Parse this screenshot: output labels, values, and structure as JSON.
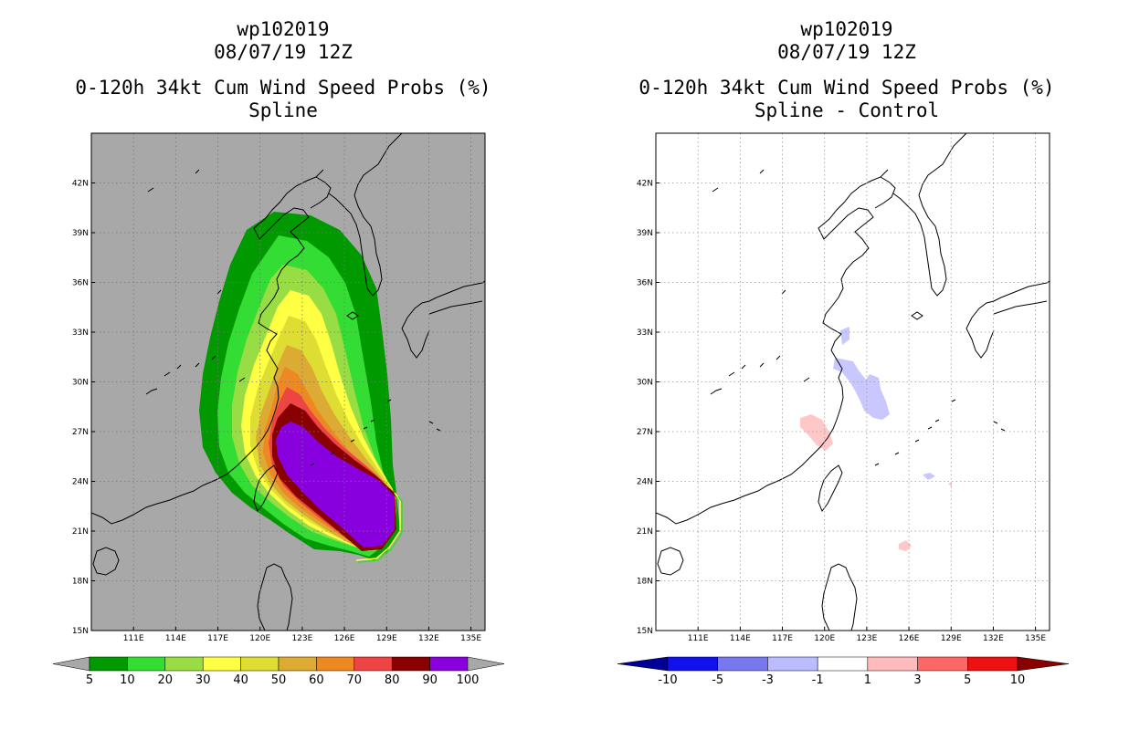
{
  "chart_data": [
    {
      "type": "contour_map",
      "storm_id": "wp102019",
      "datetime": "08/07/19 12Z",
      "title": "0-120h 34kt Cum Wind Speed Probs (%)",
      "subtitle": "Spline",
      "lon_ticks": [
        "111E",
        "114E",
        "117E",
        "120E",
        "123E",
        "126E",
        "129E",
        "132E",
        "135E"
      ],
      "lat_ticks": [
        "42N",
        "39N",
        "36N",
        "33N",
        "30N",
        "27N",
        "24N",
        "21N",
        "18N",
        "15N"
      ],
      "lon_range": [
        108,
        136
      ],
      "lat_range": [
        15,
        45
      ],
      "colorbar_levels": [
        "5",
        "10",
        "20",
        "30",
        "40",
        "50",
        "60",
        "70",
        "80",
        "90",
        "100"
      ],
      "colorbar_colors": [
        "#009900",
        "#33dd33",
        "#99dd44",
        "#ffff44",
        "#dddd33",
        "#ddaa33",
        "#ee8822",
        "#ee4444",
        "#880000",
        "#8800dd"
      ],
      "background_color": "#a8a8a8"
    },
    {
      "type": "contour_map",
      "storm_id": "wp102019",
      "datetime": "08/07/19 12Z",
      "title": "0-120h 34kt Cum Wind Speed Probs (%)",
      "subtitle": "Spline - Control",
      "lon_ticks": [
        "111E",
        "114E",
        "117E",
        "120E",
        "123E",
        "126E",
        "129E",
        "132E",
        "135E"
      ],
      "lat_ticks": [
        "42N",
        "39N",
        "36N",
        "33N",
        "30N",
        "27N",
        "24N",
        "21N",
        "18N",
        "15N"
      ],
      "lon_range": [
        108,
        136
      ],
      "lat_range": [
        15,
        45
      ],
      "colorbar_levels": [
        "-10",
        "-5",
        "-3",
        "-1",
        "1",
        "3",
        "5",
        "10"
      ],
      "colorbar_colors": [
        "#000099",
        "#1111ee",
        "#7777ee",
        "#bbbbff",
        "#ffffff",
        "#ffbbbb",
        "#ff6666",
        "#ee1111",
        "#880000"
      ],
      "background_color": "#ffffff"
    }
  ]
}
